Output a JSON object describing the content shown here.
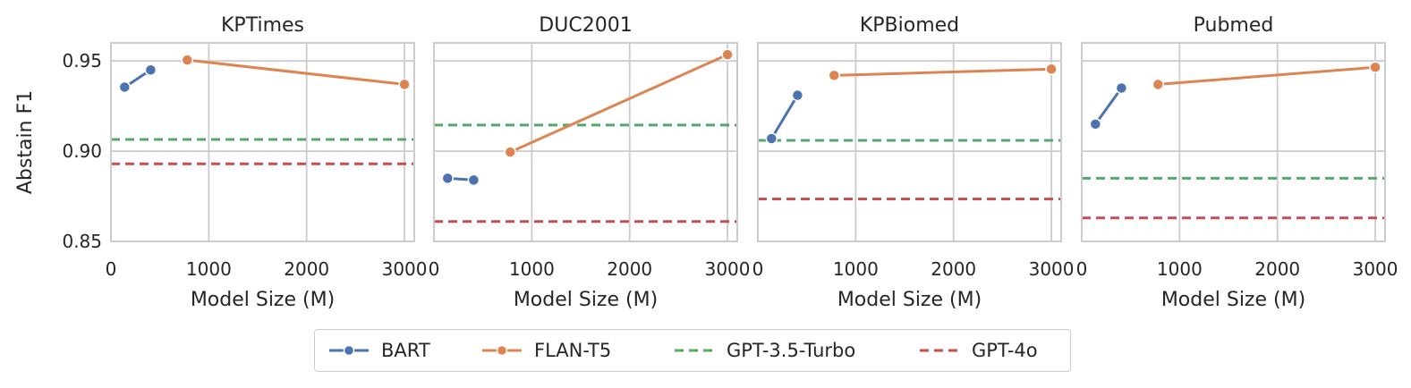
{
  "colors": {
    "BART": "#4c72b0",
    "FLAN-T5": "#dd8452",
    "GPT-3.5-Turbo": "#55a868",
    "GPT-4o": "#c44e52"
  },
  "shared": {
    "ylabel": "Abstain F1",
    "xlabel": "Model Size (M)",
    "xlim": [
      0,
      3100
    ],
    "ylim": [
      0.85,
      0.96
    ],
    "xticks": [
      0,
      1000,
      2000,
      3000
    ],
    "xtick_labels": [
      "0",
      "1000",
      "2000",
      "3000"
    ],
    "yticks": [
      0.85,
      0.9,
      0.95
    ],
    "ytick_labels": [
      "0.85",
      "0.90",
      "0.95"
    ]
  },
  "legend": {
    "placement": "bottom-center",
    "items": [
      {
        "label": "BART",
        "style": "line-marker",
        "color_key": "BART"
      },
      {
        "label": "FLAN-T5",
        "style": "line-marker",
        "color_key": "FLAN-T5"
      },
      {
        "label": "GPT-3.5-Turbo",
        "style": "dashed",
        "color_key": "GPT-3.5-Turbo"
      },
      {
        "label": "GPT-4o",
        "style": "dashed",
        "color_key": "GPT-4o"
      }
    ]
  },
  "chart_data": [
    {
      "type": "line",
      "title": "KPTimes",
      "series": [
        {
          "name": "BART",
          "kind": "line",
          "x": [
            140,
            406
          ],
          "y": [
            0.9355,
            0.945
          ]
        },
        {
          "name": "FLAN-T5",
          "kind": "line",
          "x": [
            780,
            3000
          ],
          "y": [
            0.9505,
            0.937
          ]
        },
        {
          "name": "GPT-3.5-Turbo",
          "kind": "hline",
          "y": 0.9065
        },
        {
          "name": "GPT-4o",
          "kind": "hline",
          "y": 0.893
        }
      ]
    },
    {
      "type": "line",
      "title": "DUC2001",
      "series": [
        {
          "name": "BART",
          "kind": "line",
          "x": [
            140,
            406
          ],
          "y": [
            0.885,
            0.884
          ]
        },
        {
          "name": "FLAN-T5",
          "kind": "line",
          "x": [
            780,
            3000
          ],
          "y": [
            0.8995,
            0.9535
          ]
        },
        {
          "name": "GPT-3.5-Turbo",
          "kind": "hline",
          "y": 0.9145
        },
        {
          "name": "GPT-4o",
          "kind": "hline",
          "y": 0.861
        }
      ]
    },
    {
      "type": "line",
      "title": "KPBiomed",
      "series": [
        {
          "name": "BART",
          "kind": "line",
          "x": [
            140,
            406
          ],
          "y": [
            0.907,
            0.931
          ]
        },
        {
          "name": "FLAN-T5",
          "kind": "line",
          "x": [
            780,
            3000
          ],
          "y": [
            0.942,
            0.9455
          ]
        },
        {
          "name": "GPT-3.5-Turbo",
          "kind": "hline",
          "y": 0.906
        },
        {
          "name": "GPT-4o",
          "kind": "hline",
          "y": 0.8735
        }
      ]
    },
    {
      "type": "line",
      "title": "Pubmed",
      "series": [
        {
          "name": "BART",
          "kind": "line",
          "x": [
            140,
            406
          ],
          "y": [
            0.915,
            0.935
          ]
        },
        {
          "name": "FLAN-T5",
          "kind": "line",
          "x": [
            780,
            3000
          ],
          "y": [
            0.937,
            0.9465
          ]
        },
        {
          "name": "GPT-3.5-Turbo",
          "kind": "hline",
          "y": 0.885
        },
        {
          "name": "GPT-4o",
          "kind": "hline",
          "y": 0.863
        }
      ]
    }
  ]
}
